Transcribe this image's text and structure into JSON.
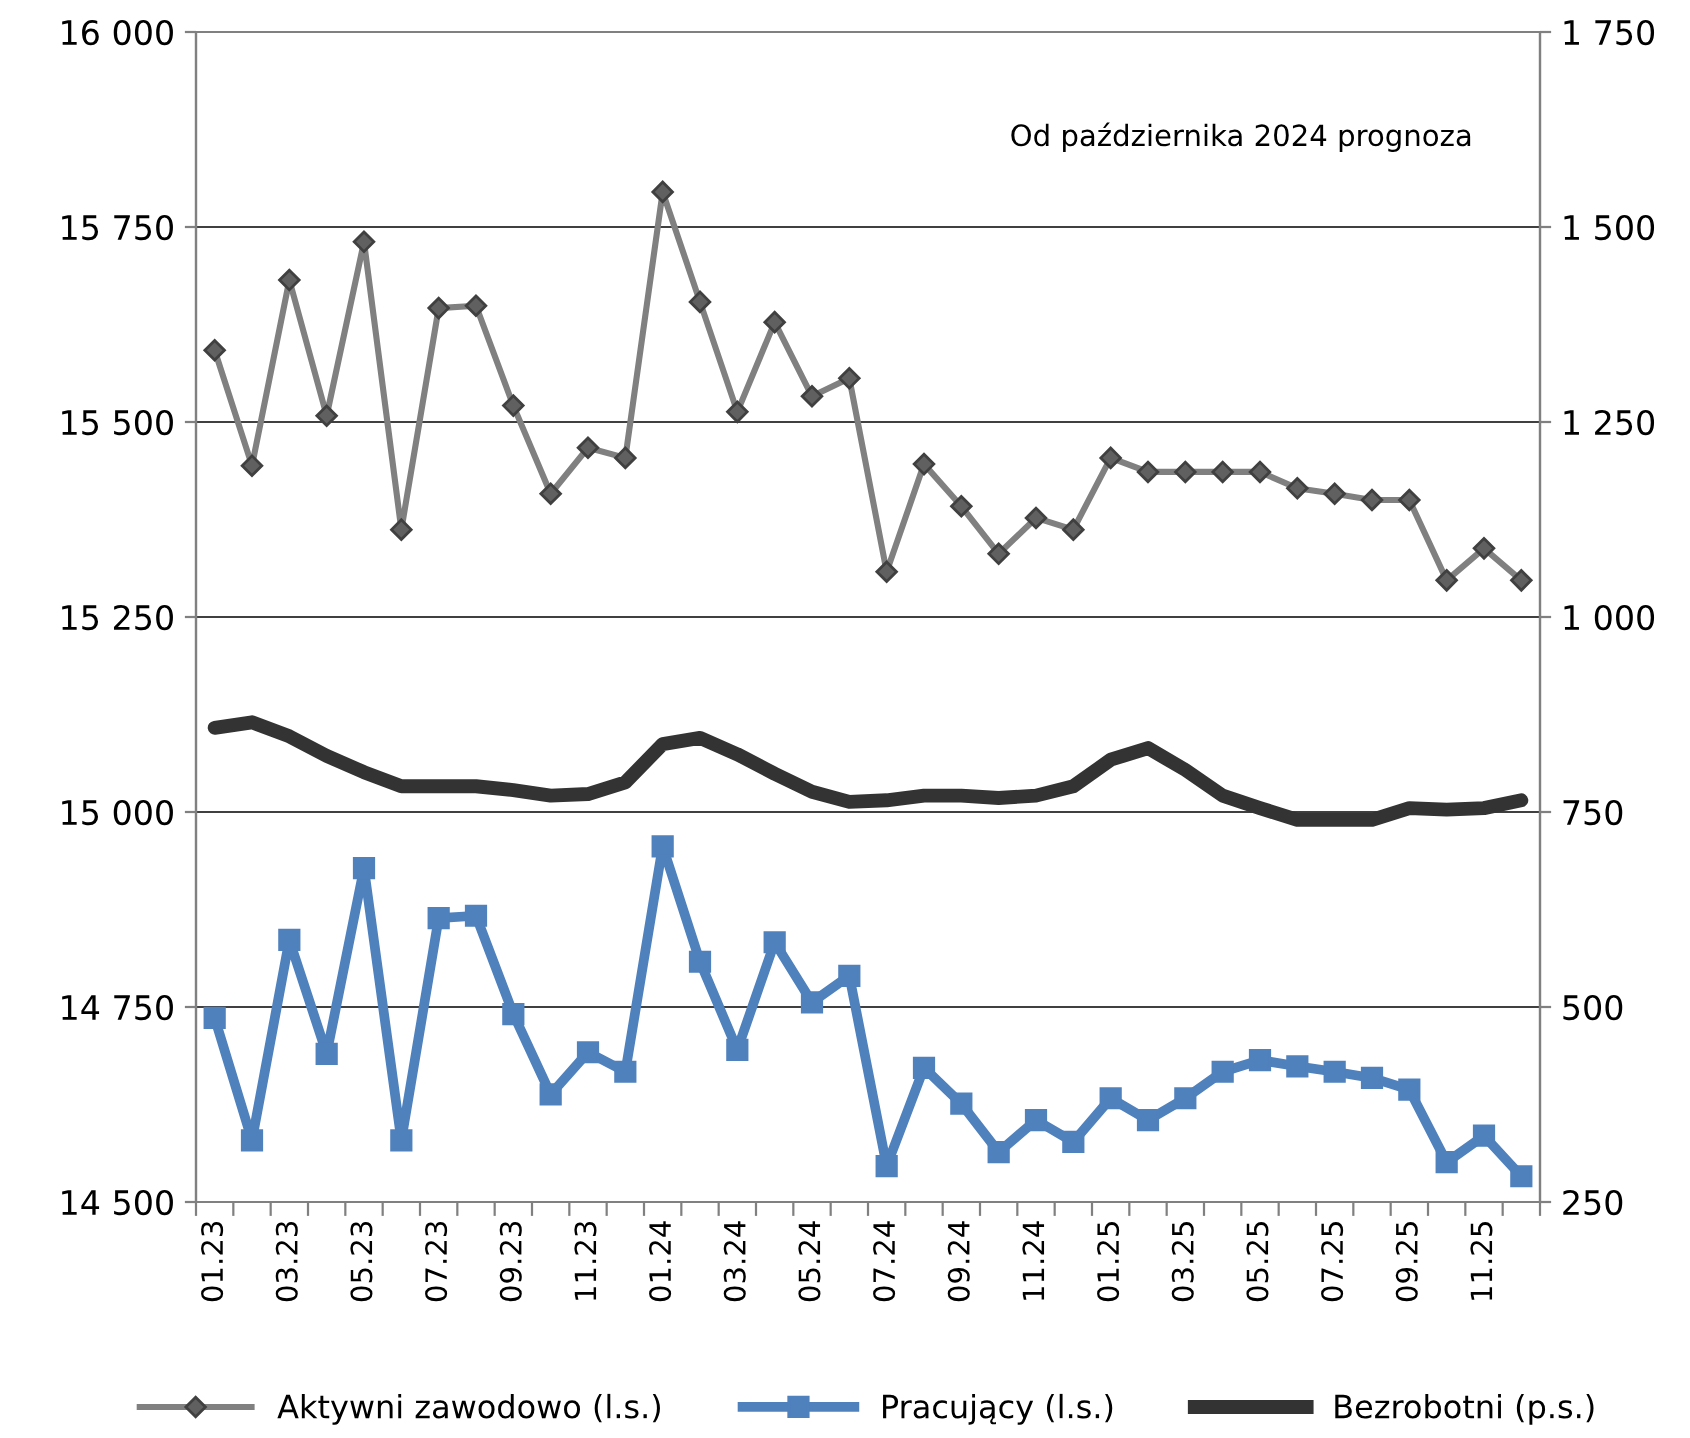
{
  "chart_data": {
    "type": "line",
    "categories": [
      "01.23",
      null,
      "03.23",
      null,
      "05.23",
      null,
      "07.23",
      null,
      "09.23",
      null,
      "11.23",
      null,
      "01.24",
      null,
      "03.24",
      null,
      "05.24",
      null,
      "07.24",
      null,
      "09.24",
      null,
      "11.24",
      null,
      "01.25",
      null,
      "03.25",
      null,
      "05.25",
      null,
      "07.25",
      null,
      "09.25",
      null,
      "11.25",
      null
    ],
    "series": [
      {
        "name": "Aktywni zawodowo (l.s.)",
        "color": "#808080",
        "marker": "diamond",
        "values": [
          15592,
          15444,
          15682,
          15508,
          15731,
          15362,
          15646,
          15649,
          15521,
          15408,
          15467,
          15454,
          15795,
          15654,
          15513,
          15628,
          15533,
          15556,
          15308,
          15446,
          15392,
          15331,
          15377,
          15362,
          15454,
          15436,
          15436,
          15436,
          15436,
          15415,
          15408,
          15400,
          15400,
          15297,
          15338,
          15297
        ]
      },
      {
        "name": "Pracujący (l.s.)",
        "color": "#4f81bd",
        "marker": "square",
        "values": [
          14736,
          14579,
          14836,
          14690,
          14928,
          14579,
          14864,
          14867,
          14741,
          14638,
          14692,
          14667,
          14956,
          14808,
          14695,
          14833,
          14756,
          14790,
          14546,
          14672,
          14626,
          14564,
          14605,
          14577,
          14633,
          14605,
          14633,
          14667,
          14682,
          14674,
          14667,
          14659,
          14644,
          14551,
          14585,
          14533
        ]
      },
      {
        "name": "Bezrobotni (p.s.)",
        "color": "#333333",
        "marker": "none",
        "axis": "y2",
        "values": [
          858,
          865,
          847,
          822,
          801,
          783,
          783,
          783,
          778,
          771,
          773,
          788,
          837,
          845,
          824,
          799,
          776,
          763,
          765,
          771,
          771,
          768,
          771,
          783,
          817,
          832,
          804,
          771,
          755,
          740,
          740,
          740,
          755,
          753,
          755,
          765
        ]
      }
    ],
    "ylim": [
      14500,
      16000
    ],
    "yticks": [
      {
        "value": 14500,
        "label": "14 500"
      },
      {
        "value": 14750,
        "label": "14 750"
      },
      {
        "value": 15000,
        "label": "15 000"
      },
      {
        "value": 15250,
        "label": "15 250"
      },
      {
        "value": 15500,
        "label": "15 500"
      },
      {
        "value": 15750,
        "label": "15 750"
      },
      {
        "value": 16000,
        "label": "16 000"
      }
    ],
    "y2lim": [
      250,
      1750
    ],
    "y2ticks": [
      250,
      500,
      750,
      {
        "value": 1000,
        "label": "1 000"
      },
      {
        "value": 1250,
        "label": "1 250"
      },
      {
        "value": 1500,
        "label": "1 500"
      },
      {
        "value": 1750,
        "label": "1 750"
      }
    ],
    "annotations": [
      "Od października 2024 prognoza"
    ],
    "grid": "y",
    "legend": "bottom",
    "line_style": "solid"
  }
}
